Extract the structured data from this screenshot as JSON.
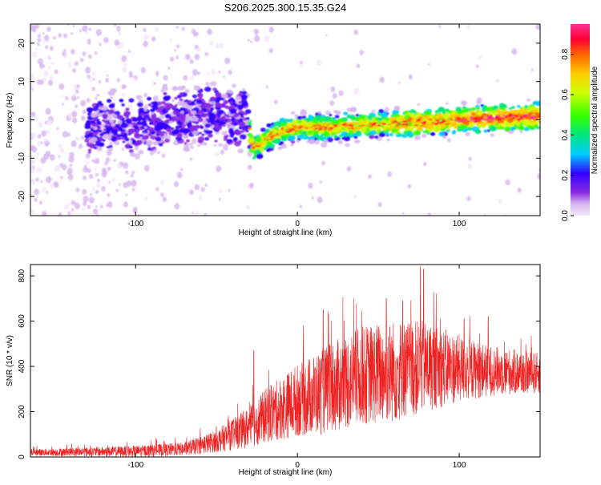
{
  "chart_data": [
    {
      "type": "heatmap",
      "title": "S206.2025.300.15.35.G24",
      "xlabel": "Height of straight line (km)",
      "ylabel": "Frequency (Hz)",
      "xlim": [
        -165,
        150
      ],
      "ylim": [
        -25,
        25
      ],
      "xticks": [
        -100,
        0,
        100
      ],
      "xtick_labels": [
        "-100",
        "0",
        "100"
      ],
      "yticks": [
        -20,
        -10,
        0,
        10,
        20
      ],
      "ytick_labels": [
        "-20",
        "-10",
        "0",
        "10",
        "20"
      ],
      "colorbar": {
        "label": "Normalized spectral amplitude",
        "range": [
          0.0,
          0.95
        ],
        "ticks": [
          0.0,
          0.2,
          0.4,
          0.6,
          0.8
        ],
        "tick_labels": [
          "0.0",
          "0.2",
          "0.4",
          "0.6",
          "0.8"
        ],
        "colors": [
          "#f2e8fa",
          "#d8b8f0",
          "#8a2be2",
          "#3300ff",
          "#00ccff",
          "#00e680",
          "#33ff00",
          "#ccff00",
          "#ffcc00",
          "#ff6600",
          "#ff0033",
          "#ff3399"
        ]
      },
      "ridge": [
        {
          "x": -120,
          "y": -2
        },
        {
          "x": -100,
          "y": -1.5
        },
        {
          "x": -80,
          "y": 0
        },
        {
          "x": -60,
          "y": 1
        },
        {
          "x": -40,
          "y": 1
        },
        {
          "x": -31,
          "y": 0
        },
        {
          "x": -27,
          "y": -8
        },
        {
          "x": -20,
          "y": -5
        },
        {
          "x": -10,
          "y": -3
        },
        {
          "x": 0,
          "y": -2
        },
        {
          "x": 20,
          "y": -2
        },
        {
          "x": 40,
          "y": -1.5
        },
        {
          "x": 60,
          "y": -1
        },
        {
          "x": 80,
          "y": -0.5
        },
        {
          "x": 100,
          "y": 0
        },
        {
          "x": 120,
          "y": 0.5
        },
        {
          "x": 148,
          "y": 1
        }
      ]
    },
    {
      "type": "line",
      "xlabel": "Height of straight line (km)",
      "ylabel": "SNR (10 * v/v)",
      "xlim": [
        -165,
        150
      ],
      "ylim": [
        0,
        850
      ],
      "xticks": [
        -100,
        0,
        100
      ],
      "xtick_labels": [
        "-100",
        "0",
        "100"
      ],
      "yticks": [
        0,
        200,
        400,
        600,
        800
      ],
      "ytick_labels": [
        "0",
        "200",
        "400",
        "600",
        "800"
      ],
      "color": "#ee2222",
      "envelope": [
        {
          "x": -165,
          "mean": 20,
          "amp": 15
        },
        {
          "x": -100,
          "mean": 25,
          "amp": 25
        },
        {
          "x": -70,
          "mean": 35,
          "amp": 30
        },
        {
          "x": -50,
          "mean": 70,
          "amp": 50
        },
        {
          "x": -30,
          "mean": 130,
          "amp": 90
        },
        {
          "x": -20,
          "mean": 180,
          "amp": 120
        },
        {
          "x": 0,
          "mean": 250,
          "amp": 160
        },
        {
          "x": 20,
          "mean": 300,
          "amp": 200
        },
        {
          "x": 40,
          "mean": 360,
          "amp": 220
        },
        {
          "x": 60,
          "mean": 380,
          "amp": 230
        },
        {
          "x": 80,
          "mean": 400,
          "amp": 200
        },
        {
          "x": 100,
          "mean": 390,
          "amp": 150
        },
        {
          "x": 120,
          "mean": 380,
          "amp": 110
        },
        {
          "x": 150,
          "mean": 370,
          "amp": 90
        }
      ],
      "peaks": [
        {
          "x": -27,
          "y": 470
        },
        {
          "x": 16,
          "y": 650
        },
        {
          "x": 76,
          "y": 840
        },
        {
          "x": 78,
          "y": 830
        },
        {
          "x": 65,
          "y": 690
        },
        {
          "x": 55,
          "y": 700
        },
        {
          "x": 118,
          "y": 620
        },
        {
          "x": 103,
          "y": 610
        }
      ]
    }
  ]
}
